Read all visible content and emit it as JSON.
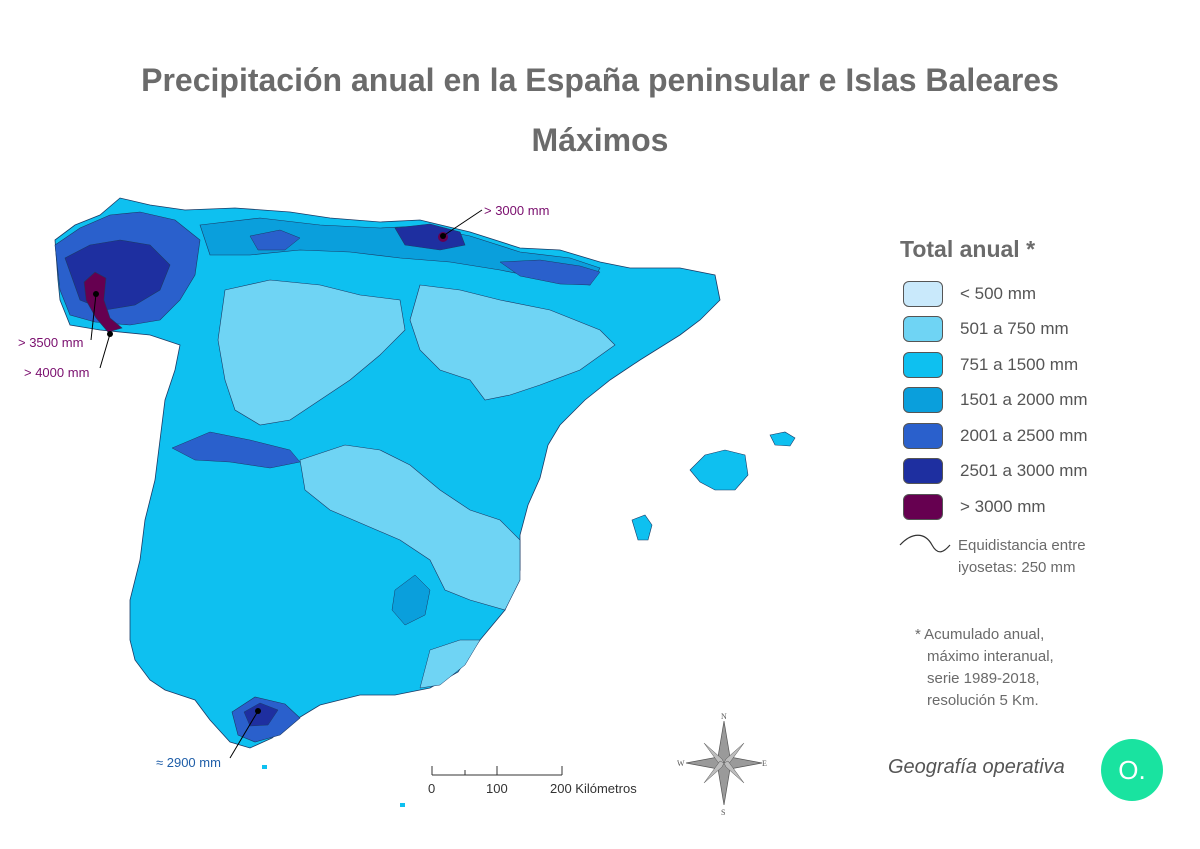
{
  "title": "Precipitación anual en la España peninsular e Islas Baleares",
  "subtitle": "Máximos",
  "legend": {
    "title": "Total anual *",
    "items": [
      {
        "label": "< 500 mm",
        "color": "#c9e9fb"
      },
      {
        "label": "501 a 750 mm",
        "color": "#6fd4f4"
      },
      {
        "label": "751 a 1500 mm",
        "color": "#0ec0f0"
      },
      {
        "label": "1501 a 2000 mm",
        "color": "#0a9fdc"
      },
      {
        "label": "2001 a 2500 mm",
        "color": "#2a60cc"
      },
      {
        "label": "2501 a 3000 mm",
        "color": "#1e2fa0"
      },
      {
        "label": "> 3000 mm",
        "color": "#660050"
      }
    ],
    "isoline_label_1": "Equidistancia entre",
    "isoline_label_2": "iyosetas: 250 mm"
  },
  "footnote": {
    "line1": "* Acumulado anual,",
    "line2": "máximo interanual,",
    "line3": "serie 1989-2018,",
    "line4": "resolución 5 Km."
  },
  "annotations": {
    "north": "> 3000 mm",
    "galicia_a": "> 3500 mm",
    "galicia_b": "> 4000 mm",
    "south": "≈ 2900 mm"
  },
  "scale_bar": {
    "tick0": "0",
    "tick1": "100",
    "tick2": "200 Kilómetros"
  },
  "compass": {
    "n": "N",
    "s": "S",
    "e": "E",
    "w": "W"
  },
  "brand": {
    "name": "Geografía operativa",
    "logo": "O."
  }
}
